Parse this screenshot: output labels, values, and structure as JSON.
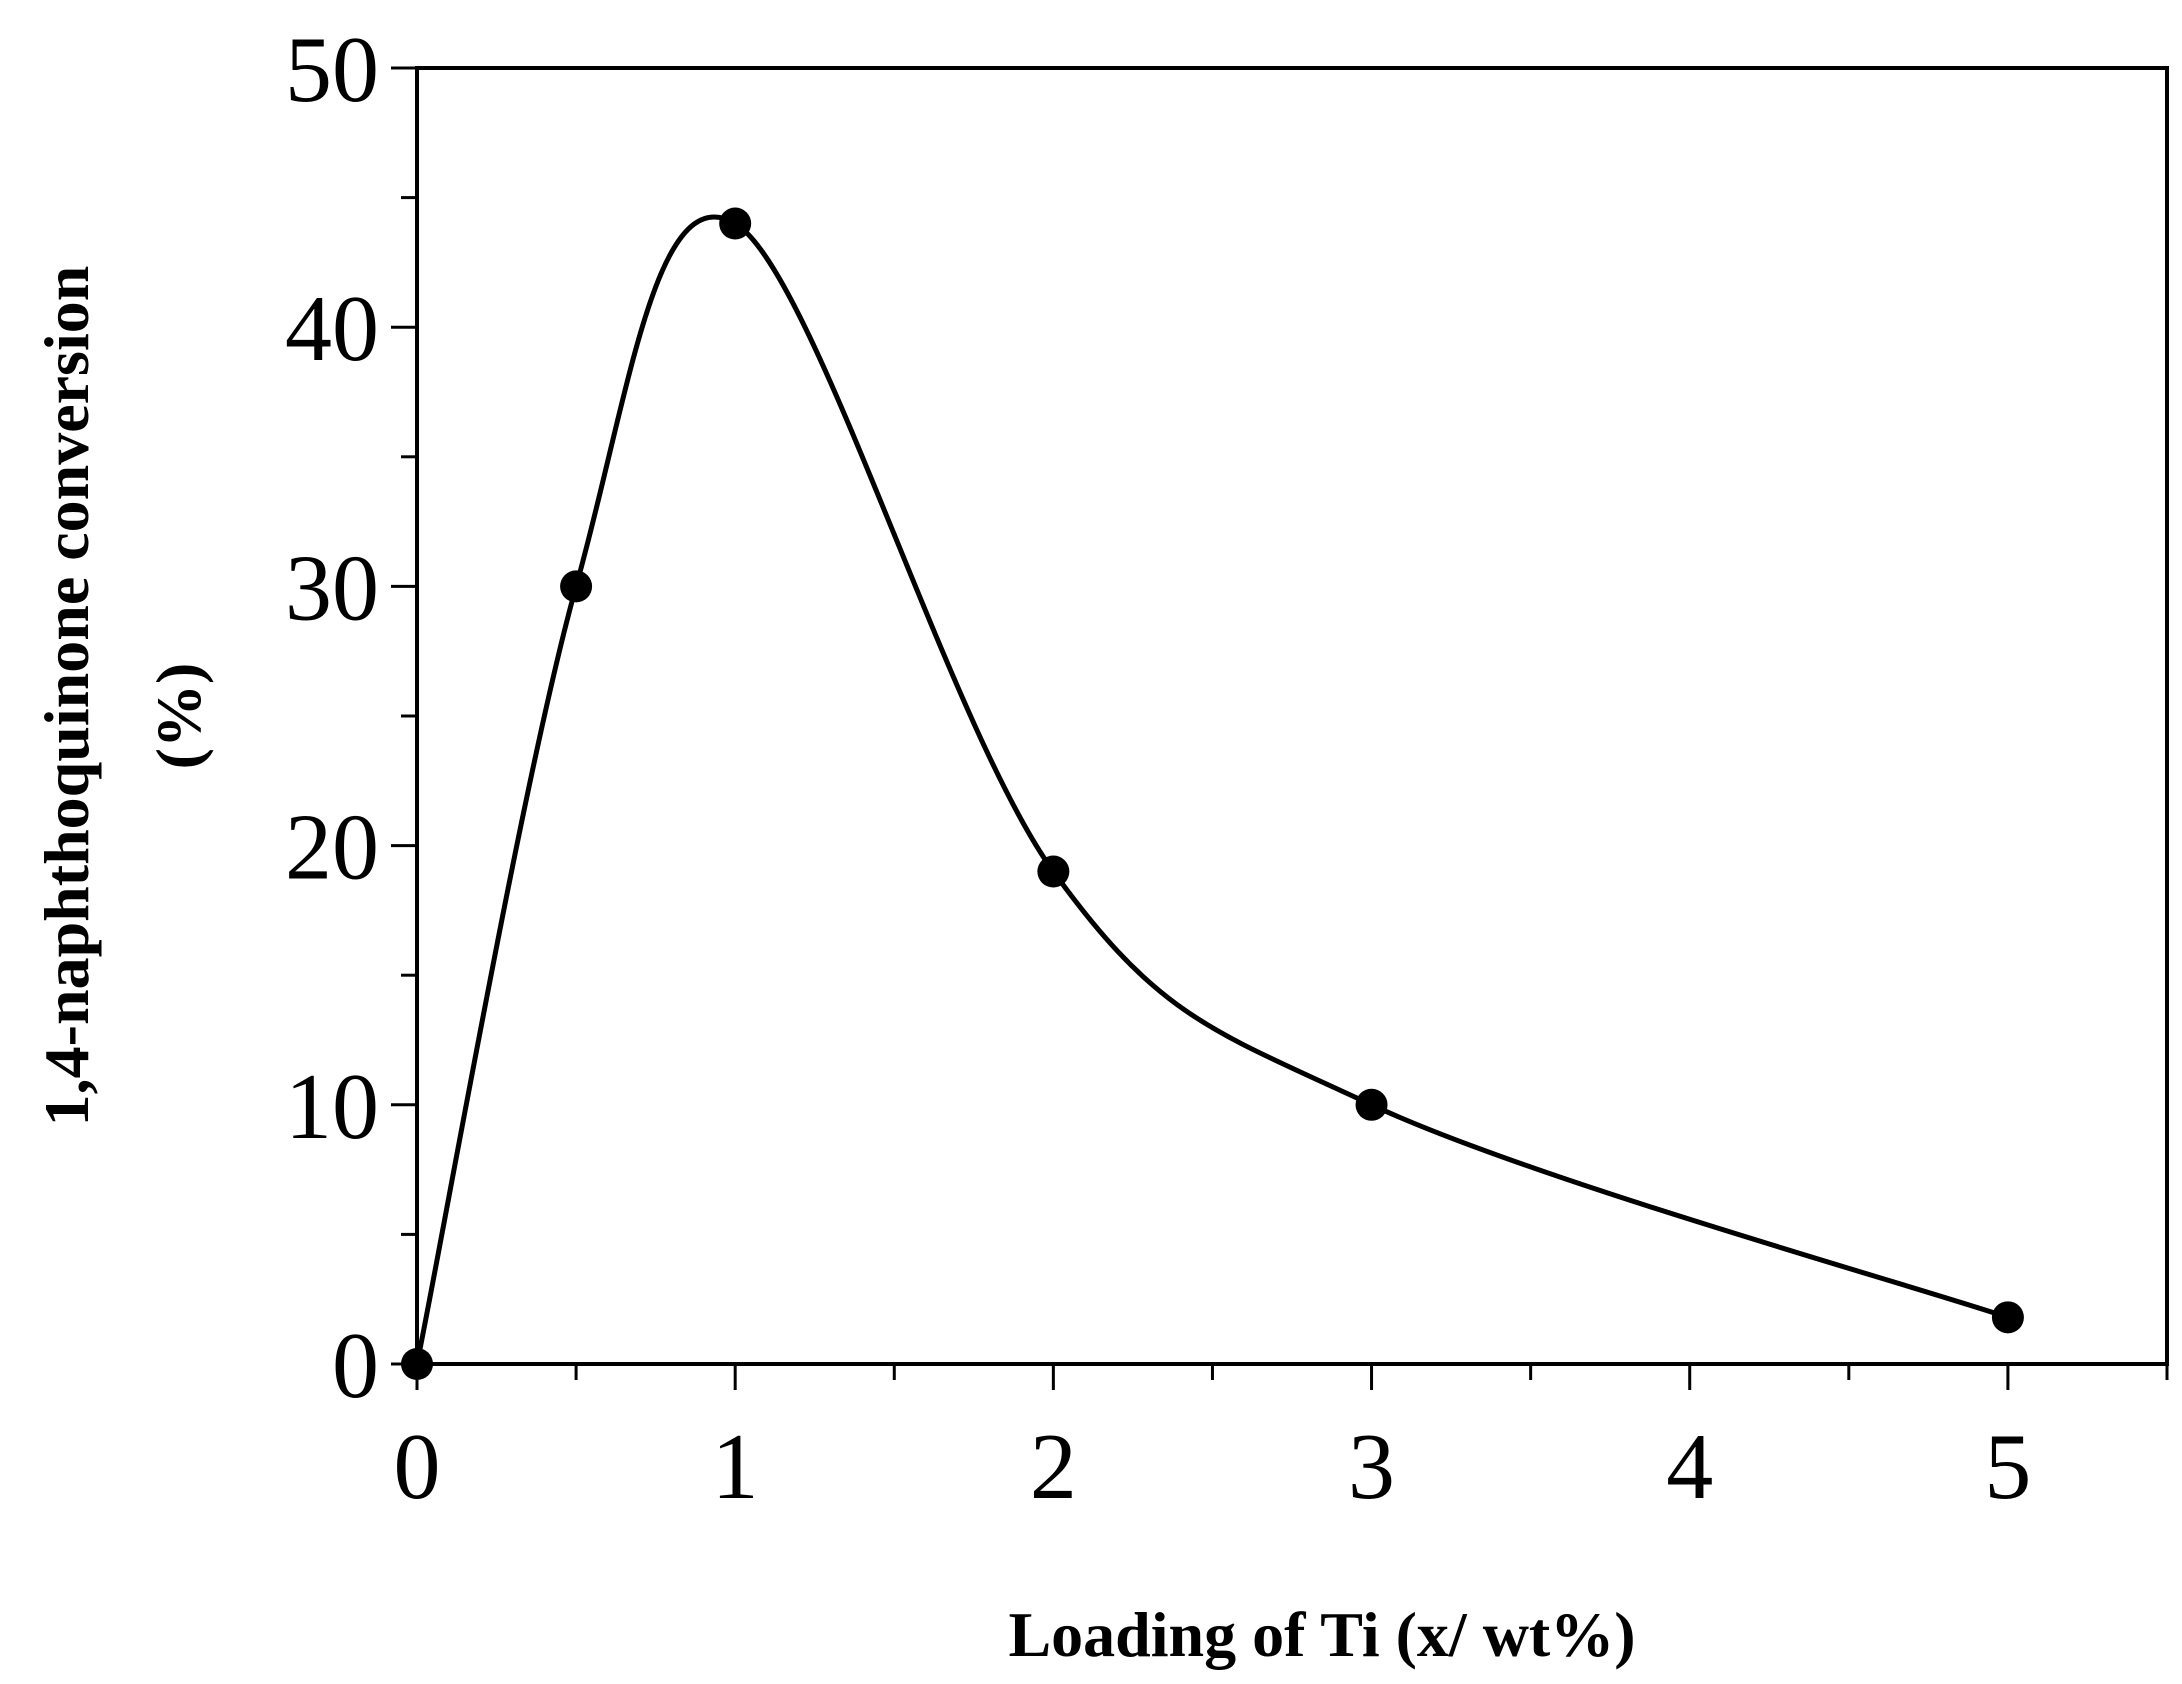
{
  "chart_data": {
    "type": "scatter",
    "title": "",
    "xlabel": "Loading of Ti (x/ wt%)",
    "ylabel_lines": [
      "1,4-naphthoquinone conversion",
      "(%)"
    ],
    "xlim": [
      0,
      5.5
    ],
    "ylim": [
      0,
      50
    ],
    "x_ticks": [
      "0",
      "1",
      "2",
      "3",
      "4",
      "5"
    ],
    "y_ticks": [
      "0",
      "10",
      "20",
      "30",
      "40",
      "50"
    ],
    "series": [
      {
        "x": [
          0,
          0.5,
          1,
          2,
          3,
          5
        ],
        "y": [
          0,
          30,
          44,
          19,
          10,
          1.8
        ],
        "marker": "filled-circle",
        "smooth_line": true
      }
    ],
    "grid": false,
    "legend": "none",
    "colors": {
      "line": "#000000",
      "marker": "#000000",
      "background": "#ffffff"
    }
  }
}
